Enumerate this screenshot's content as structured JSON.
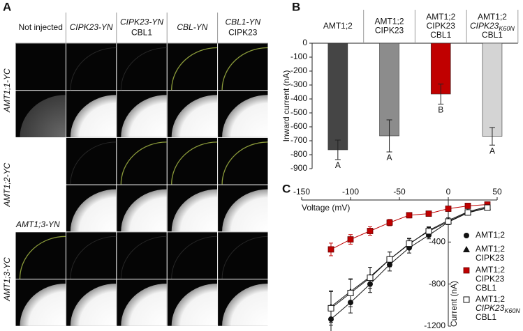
{
  "panel_a": {
    "label": "A",
    "column_headers": [
      [
        "Not injected"
      ],
      [
        "CIPK23-YN"
      ],
      [
        "CIPK23-YN",
        "CBL1"
      ],
      [
        "CBL-YN"
      ],
      [
        "CBL1-YN",
        "CIPK23"
      ]
    ],
    "row_labels": [
      "AMT1;1-YC",
      "AMT1;2-YC",
      "AMT1;3-YC"
    ],
    "inset_label": "AMT1;3-YN"
  },
  "chart_data": [
    {
      "panel": "B",
      "type": "bar",
      "ylabel": "Inward current (nA)",
      "categories": [
        [
          "AMT1;2"
        ],
        [
          "AMT1;2",
          "CIPK23"
        ],
        [
          "AMT1;2",
          "CIPK23",
          "CBL1"
        ],
        [
          "AMT1;2",
          {
            "text": "CIPK23",
            "subscript": "K60N"
          },
          "CBL1"
        ]
      ],
      "values": [
        -765,
        -665,
        -365,
        -668
      ],
      "errors": [
        70,
        115,
        72,
        63
      ],
      "colors": [
        "#454545",
        "#8c8c8c",
        "#c00000",
        "#d4d4d4"
      ],
      "letters": [
        "A",
        "A",
        "B",
        "A"
      ],
      "ylim": [
        -900,
        0
      ],
      "yticks": [
        0,
        -100,
        -200,
        -300,
        -400,
        -500,
        -600,
        -700,
        -800,
        -900
      ]
    },
    {
      "panel": "C",
      "type": "line",
      "xlabel": "Voltage (mV)",
      "ylabel": "Current (nA)",
      "x": [
        -120,
        -100,
        -80,
        -60,
        -40,
        -20,
        0,
        20,
        40
      ],
      "xlim": [
        -150,
        50
      ],
      "xticks": [
        -150,
        -100,
        -50,
        0,
        50
      ],
      "ylim": [
        -1200,
        0
      ],
      "yticks": [
        -400,
        -800,
        -1200
      ],
      "series": [
        {
          "name": [
            "AMT1;2"
          ],
          "color": "#111111",
          "marker": "circle",
          "values": [
            -1134,
            -975,
            -800,
            -615,
            -455,
            -335,
            -210,
            -122,
            -76
          ],
          "errors": [
            120,
            100,
            80,
            60,
            50,
            35,
            25,
            20,
            15
          ]
        },
        {
          "name": [
            "AMT1;2",
            "CIPK23"
          ],
          "color": "#111111",
          "marker": "triangle",
          "values": [
            -1015,
            -870,
            -730,
            -565,
            -420,
            -290,
            -195,
            -112,
            -63
          ],
          "errors": [
            150,
            120,
            90,
            70,
            50,
            35,
            25,
            20,
            15
          ]
        },
        {
          "name": [
            "AMT1;2",
            "CIPK23",
            "CBL1"
          ],
          "color": "#c00000",
          "marker": "square",
          "values": [
            -470,
            -375,
            -295,
            -215,
            -145,
            -130,
            -83,
            -56,
            -43
          ],
          "errors": [
            60,
            45,
            40,
            30,
            25,
            20,
            15,
            12,
            10
          ]
        },
        {
          "name": [
            "AMT1;2",
            {
              "text": "CIPK23",
              "subscript": "K60N"
            },
            "CBL1"
          ],
          "color": "#111111",
          "marker": "open-square",
          "values": [
            -1030,
            -885,
            -740,
            -565,
            -415,
            -297,
            -205,
            -119,
            -73
          ],
          "errors": [
            160,
            130,
            100,
            70,
            50,
            35,
            25,
            20,
            15
          ]
        }
      ]
    }
  ]
}
